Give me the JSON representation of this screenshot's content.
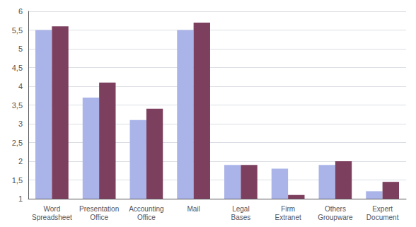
{
  "chart_data": {
    "type": "bar",
    "categories": [
      "Word\nSpreadsheet",
      "Presentation\nOffice",
      "Accounting\nOffice",
      "Mail",
      "Legal\nBases",
      "Firm\nExtranet",
      "Others\nGroupware",
      "Expert\nDocument"
    ],
    "series": [
      {
        "color": "#aab4e8",
        "values": [
          5.5,
          3.7,
          3.1,
          5.5,
          1.9,
          1.8,
          1.9,
          1.2
        ]
      },
      {
        "color": "#7d3f5e",
        "values": [
          5.6,
          4.1,
          3.4,
          5.7,
          1.9,
          1.1,
          2.0,
          1.45
        ]
      }
    ],
    "ylim": [
      1.0,
      6.0
    ],
    "yticks": [
      1,
      {
        "value": 1.5,
        "label": "1,5"
      },
      2,
      {
        "value": 2.5,
        "label": "2,5"
      },
      3,
      {
        "value": 3.5,
        "label": "3,5"
      },
      4,
      {
        "value": 4.5,
        "label": "4,5"
      },
      5,
      {
        "value": 5.5,
        "label": "5,5"
      },
      6
    ],
    "grid": true
  }
}
